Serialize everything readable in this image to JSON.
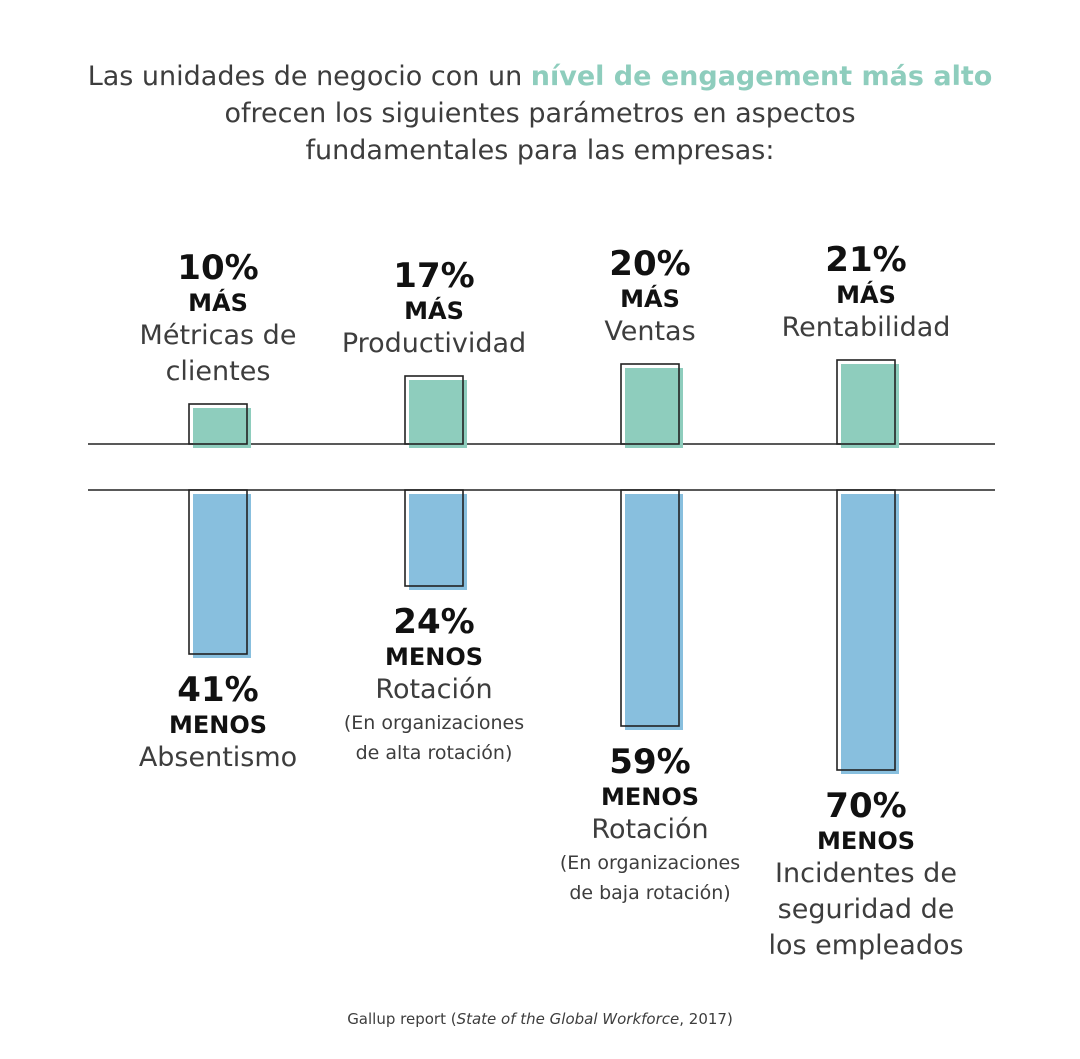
{
  "title": {
    "part1": "Las unidades de negocio con un ",
    "highlight": "nível de engagement más alto",
    "line2": "ofrecen los siguientes parámetros en aspectos",
    "line3": "fundamentales para las empresas:"
  },
  "source": {
    "prefix": "Gallup report (",
    "italic": "State of the Global Workforce",
    "suffix": ", 2017)"
  },
  "colors": {
    "positive": "#8ecdbd",
    "negative": "#88bfde",
    "outline": "#222222"
  },
  "chart_data": {
    "type": "bar",
    "top": {
      "direction_word": "MÁS",
      "items": [
        {
          "value": 10,
          "pct": "10%",
          "category": [
            "Métricas de",
            "clientes"
          ]
        },
        {
          "value": 17,
          "pct": "17%",
          "category": [
            "Productividad"
          ]
        },
        {
          "value": 20,
          "pct": "20%",
          "category": [
            "Ventas"
          ]
        },
        {
          "value": 21,
          "pct": "21%",
          "category": [
            "Rentabilidad"
          ]
        }
      ]
    },
    "bottom": {
      "direction_word": "MENOS",
      "items": [
        {
          "value": 41,
          "pct": "41%",
          "category": [
            "Absentismo"
          ],
          "note": []
        },
        {
          "value": 24,
          "pct": "24%",
          "category": [
            "Rotación"
          ],
          "note": [
            "(En organizaciones",
            "de alta rotación)"
          ]
        },
        {
          "value": 59,
          "pct": "59%",
          "category": [
            "Rotación"
          ],
          "note": [
            "(En organizaciones",
            "de baja rotación)"
          ]
        },
        {
          "value": 70,
          "pct": "70%",
          "category": [
            "Incidentes de",
            "seguridad de",
            "los empleados"
          ],
          "note": []
        }
      ]
    }
  }
}
